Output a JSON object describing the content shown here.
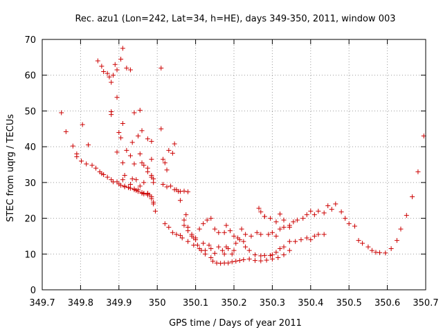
{
  "chart_data": {
    "type": "scatter",
    "title": "Rec. azu1 (Lon=242, Lat=34, h=HE), days 349-350, 2011, window 003",
    "xlabel": "GPS time / Days of year 2011",
    "ylabel": "STEC from uqrg / TECUs",
    "xlim": [
      349.7,
      350.7
    ],
    "ylim": [
      0,
      70
    ],
    "xticks": [
      349.7,
      349.8,
      349.9,
      350,
      350.1,
      350.2,
      350.3,
      350.4,
      350.5,
      350.6,
      350.7
    ],
    "xtick_labels": [
      "349.7",
      "349.8",
      "349.9",
      "350",
      "350.1",
      "350.2",
      "350.3",
      "350.4",
      "350.5",
      "350.6",
      "350.7"
    ],
    "yticks": [
      0,
      10,
      20,
      30,
      40,
      50,
      60,
      70
    ],
    "ytick_labels": [
      "0",
      "10",
      "20",
      "30",
      "40",
      "50",
      "60",
      "70"
    ],
    "grid": true,
    "marker": "+",
    "color": "#cc0000",
    "series": [
      {
        "x": [
          349.75,
          349.762,
          349.78,
          349.79,
          349.79,
          349.802,
          349.805,
          349.815,
          349.82,
          349.83,
          349.84,
          349.85,
          349.855,
          349.86,
          349.87,
          349.88,
          349.885,
          349.9,
          349.905,
          349.915,
          349.925,
          349.93,
          349.94,
          349.945,
          349.95,
          349.96,
          349.965,
          349.975,
          349.98,
          349.985,
          349.99,
          349.995,
          349.845,
          349.855,
          349.86,
          349.87,
          349.875,
          349.88,
          349.885,
          349.89,
          349.895,
          349.905,
          349.91,
          349.92,
          349.93,
          349.94,
          349.955,
          349.96,
          349.975,
          349.985,
          349.985,
          349.895,
          349.9,
          349.905,
          349.91,
          349.92,
          349.93,
          349.935,
          349.94,
          349.95,
          349.955,
          349.96,
          349.965,
          349.975,
          349.975,
          349.985,
          349.99,
          349.88,
          349.88,
          349.895,
          349.91,
          349.915,
          349.93,
          349.935,
          349.945,
          349.955,
          349.965,
          349.975,
          349.985,
          349.99,
          349.895,
          349.91,
          349.915,
          349.925,
          349.94,
          349.95,
          349.96,
          349.965,
          349.975,
          349.985,
          349.99,
          350.01,
          350.01,
          350.015,
          350.02,
          350.025,
          350.03,
          350.04,
          350.045,
          350.05,
          350.06,
          350.07,
          350.08,
          350.015,
          350.02,
          350.025,
          350.03,
          350.035,
          350.04,
          350.045,
          350.05,
          350.055,
          350.06,
          350.065,
          350.08,
          350.095,
          350.11,
          350.125,
          350.14,
          350.145,
          350.155,
          350.165,
          350.175,
          350.185,
          350.195,
          350.205,
          350.215,
          350.225,
          350.24,
          350.255,
          350.27,
          350.285,
          350.3,
          350.315,
          350.33,
          350.345,
          350.06,
          350.07,
          350.075,
          350.08,
          350.09,
          350.095,
          350.1,
          350.105,
          350.115,
          350.12,
          350.125,
          350.135,
          350.14,
          350.15,
          350.16,
          350.17,
          350.175,
          350.18,
          350.185,
          350.195,
          350.2,
          350.205,
          350.215,
          350.225,
          350.23,
          350.24,
          350.255,
          350.27,
          350.28,
          350.295,
          350.3,
          350.31,
          350.32,
          350.33,
          350.345,
          350.36,
          350.375,
          350.39,
          350.4,
          350.41,
          350.42,
          350.435,
          350.07,
          350.08,
          350.09,
          350.1,
          350.11,
          350.12,
          350.13,
          350.14,
          350.15,
          350.16,
          350.175,
          350.18,
          350.19,
          350.2,
          350.21,
          350.22,
          350.23,
          350.245,
          350.26,
          350.27,
          350.28,
          350.29,
          350.3,
          350.31,
          350.32,
          350.33,
          350.345,
          350.355,
          350.365,
          350.38,
          350.39,
          350.4,
          350.41,
          350.42,
          350.435,
          350.445,
          350.455,
          350.465,
          350.48,
          350.49,
          350.5,
          350.515,
          350.265,
          350.27,
          350.28,
          350.295,
          350.31,
          350.32,
          350.33,
          350.345,
          350.525,
          350.535,
          350.55,
          350.56,
          350.57,
          350.58,
          350.595,
          350.61,
          350.625,
          350.635,
          350.65,
          350.665,
          350.68,
          350.695
        ],
        "y": [
          49.5,
          44.2,
          40.2,
          38,
          37.2,
          36,
          46.2,
          35.2,
          40.5,
          34.8,
          34,
          33,
          32.5,
          32.2,
          31.5,
          30.8,
          30.2,
          29.6,
          29.2,
          28.8,
          28.6,
          28.4,
          28,
          27.8,
          27.5,
          27.2,
          27,
          26.8,
          26.5,
          25.5,
          24,
          22,
          64,
          62.5,
          61,
          60.5,
          59.5,
          58,
          60,
          63,
          61.5,
          64.5,
          67.5,
          62,
          61.5,
          49.5,
          50.2,
          44.5,
          42.2,
          41.5,
          36.5,
          53.8,
          44,
          42.5,
          46.5,
          39,
          37.5,
          41.2,
          35.2,
          43,
          38,
          35.5,
          34.8,
          33,
          34,
          32,
          31,
          49,
          49.8,
          38.5,
          35.5,
          32,
          29.5,
          31,
          30.8,
          29,
          30,
          27,
          31.5,
          30,
          30.2,
          30.8,
          29,
          28.6,
          28.2,
          28,
          27,
          26.8,
          26.5,
          26,
          24.5,
          62,
          45,
          36.5,
          35.5,
          33.5,
          39,
          38.2,
          40.8,
          28,
          27.5,
          27.6,
          27.4,
          29.5,
          18.5,
          28.8,
          17.5,
          29,
          16,
          28,
          15.5,
          27.5,
          15.2,
          14.5,
          13.5,
          12.5,
          11.5,
          10,
          9,
          8,
          7.5,
          7.4,
          7.5,
          7.5,
          7.8,
          8,
          8.2,
          8.4,
          8.6,
          8.2,
          8.1,
          8.3,
          8.6,
          9,
          9.8,
          11,
          25,
          19.5,
          21,
          17.5,
          15,
          14.5,
          14,
          12.5,
          11,
          13,
          11,
          12.5,
          11.5,
          10.2,
          12,
          11,
          10,
          12,
          11.5,
          10,
          11,
          13,
          14,
          13.5,
          12,
          11,
          9.8,
          9.5,
          9.6,
          9.6,
          9.8,
          10.5,
          11.5,
          12,
          13.5,
          13.5,
          14,
          14.5,
          14,
          15,
          15.5,
          15.5,
          18,
          16.5,
          15.5,
          14.5,
          17,
          18.5,
          19.5,
          20,
          17,
          16,
          16,
          18,
          16.5,
          15,
          14.5,
          17,
          15.5,
          15,
          16,
          15.5,
          20.5,
          15.5,
          16,
          15,
          17,
          17.5,
          18,
          19,
          19.5,
          20,
          21,
          22,
          21,
          22,
          21.5,
          23.5,
          22.5,
          24,
          21.8,
          20,
          18.5,
          17.8,
          22.8,
          21.8,
          20.5,
          20,
          19,
          21.2,
          19.5,
          17.5,
          13.8,
          13,
          12,
          11,
          10.5,
          10.4,
          10.3,
          11.5,
          13.8,
          17,
          20.8,
          26,
          33,
          43
        ]
      }
    ]
  }
}
